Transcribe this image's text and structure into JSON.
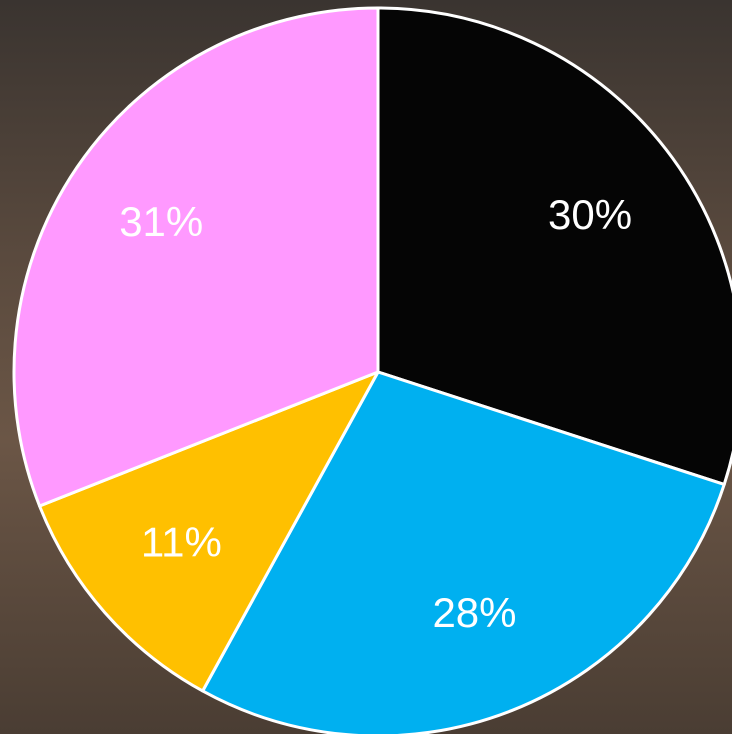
{
  "chart_data": {
    "type": "pie",
    "categories": [
      null,
      null,
      null,
      null
    ],
    "values": [
      30,
      28,
      11,
      31
    ],
    "value_labels": [
      "30%",
      "28%",
      "11%",
      "31%"
    ],
    "colors": [
      "#050505",
      "#00b0f0",
      "#ffc000",
      "#ff99ff"
    ]
  }
}
